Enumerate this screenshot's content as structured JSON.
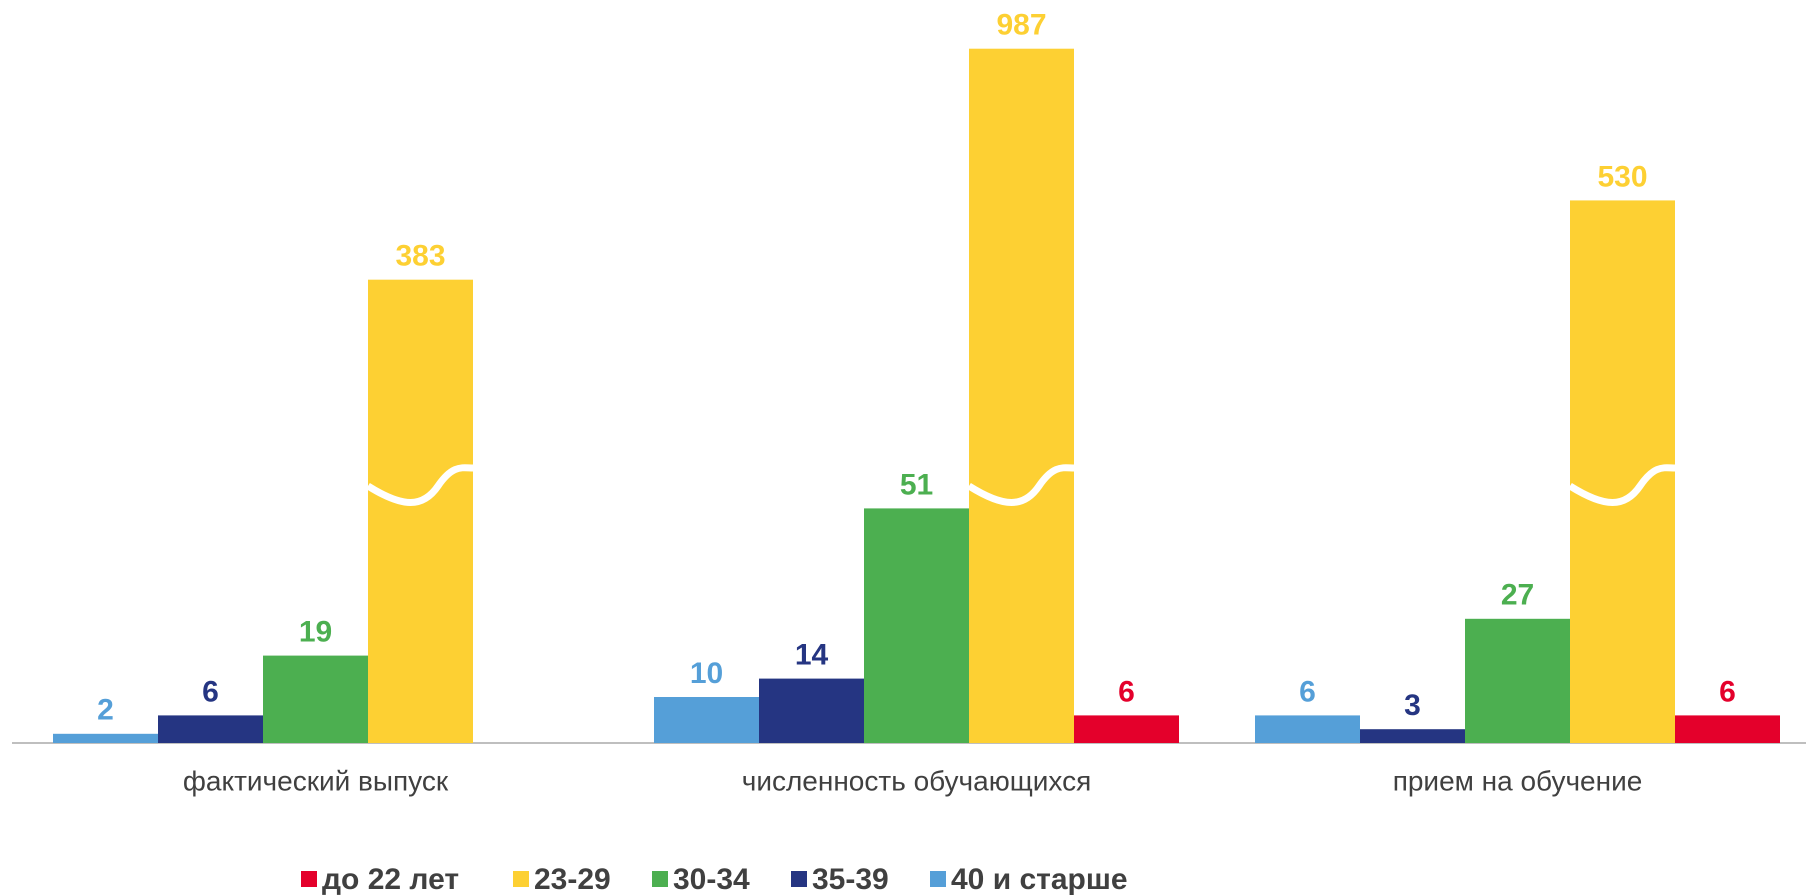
{
  "chart_data": {
    "type": "bar",
    "categories": [
      "фактический выпуск",
      "численность обучающихся",
      "прием на обучение"
    ],
    "series": [
      {
        "name": "до 22 лет",
        "color": "#e4002b",
        "values": [
          null,
          6,
          6
        ]
      },
      {
        "name": "23-29",
        "color": "#fdd033",
        "values": [
          383,
          987,
          530
        ]
      },
      {
        "name": "30-34",
        "color": "#4caf50",
        "values": [
          19,
          51,
          27
        ]
      },
      {
        "name": "35-39",
        "color": "#253582",
        "values": [
          6,
          14,
          3
        ]
      },
      {
        "name": "40 и старше",
        "color": "#559fd8",
        "values": [
          2,
          10,
          6
        ]
      }
    ],
    "axis_break": true,
    "legend": "bottom"
  }
}
